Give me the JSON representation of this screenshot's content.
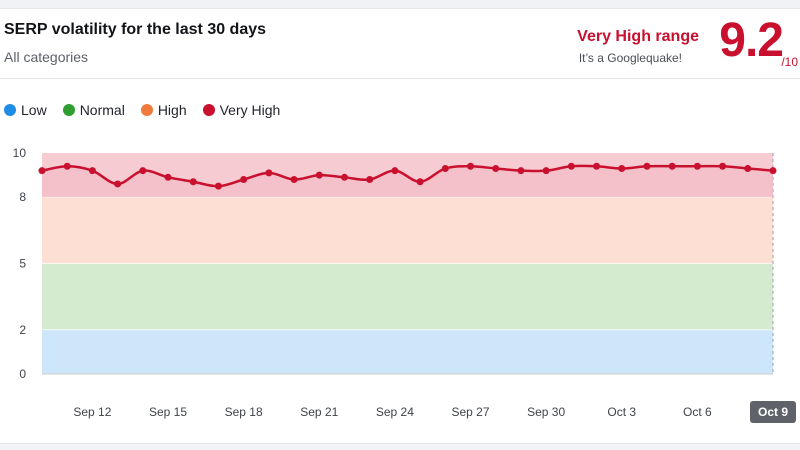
{
  "header": {
    "title": "SERP volatility for the last 30 days",
    "subtitle": "All categories",
    "range_label": "Very High range",
    "range_desc": "It’s a Googlequake!",
    "score": "9.2",
    "score_max": "/10"
  },
  "legend": [
    {
      "label": "Low",
      "color": "#1f8ce6"
    },
    {
      "label": "Normal",
      "color": "#2e9e2e"
    },
    {
      "label": "High",
      "color": "#f07a3c"
    },
    {
      "label": "Very High",
      "color": "#c9102f"
    }
  ],
  "chart_data": {
    "type": "line",
    "ylim": [
      0,
      10
    ],
    "y_ticks": [
      "0",
      "2",
      "5",
      "8",
      "10"
    ],
    "bands": [
      {
        "name": "Low",
        "from": 0,
        "to": 2,
        "color": "#cde6fa"
      },
      {
        "name": "Normal",
        "from": 2,
        "to": 5,
        "color": "#d5ebcf"
      },
      {
        "name": "High",
        "from": 5,
        "to": 8,
        "color": "#fde0d3"
      },
      {
        "name": "Very High",
        "from": 8,
        "to": 10,
        "color": "#f6cbd2"
      }
    ],
    "x_tick_labels": [
      "Sep 12",
      "Sep 15",
      "Sep 18",
      "Sep 21",
      "Sep 24",
      "Sep 27",
      "Sep 30",
      "Oct 3",
      "Oct 6",
      "Oct 9"
    ],
    "x_tick_indices": [
      2,
      5,
      8,
      11,
      14,
      17,
      20,
      23,
      26,
      29
    ],
    "highlighted_label": "Oct 9",
    "series": [
      {
        "color": "#c9102f",
        "values": [
          9.2,
          9.4,
          9.2,
          8.6,
          9.2,
          8.9,
          8.7,
          8.5,
          8.8,
          9.1,
          8.8,
          9.0,
          8.9,
          8.8,
          9.2,
          8.7,
          9.3,
          9.4,
          9.3,
          9.2,
          9.2,
          9.4,
          9.4,
          9.3,
          9.4,
          9.4,
          9.4,
          9.4,
          9.3,
          9.2
        ]
      }
    ]
  },
  "colors": {
    "accent": "#c9102f",
    "badge": "#5f6369"
  }
}
